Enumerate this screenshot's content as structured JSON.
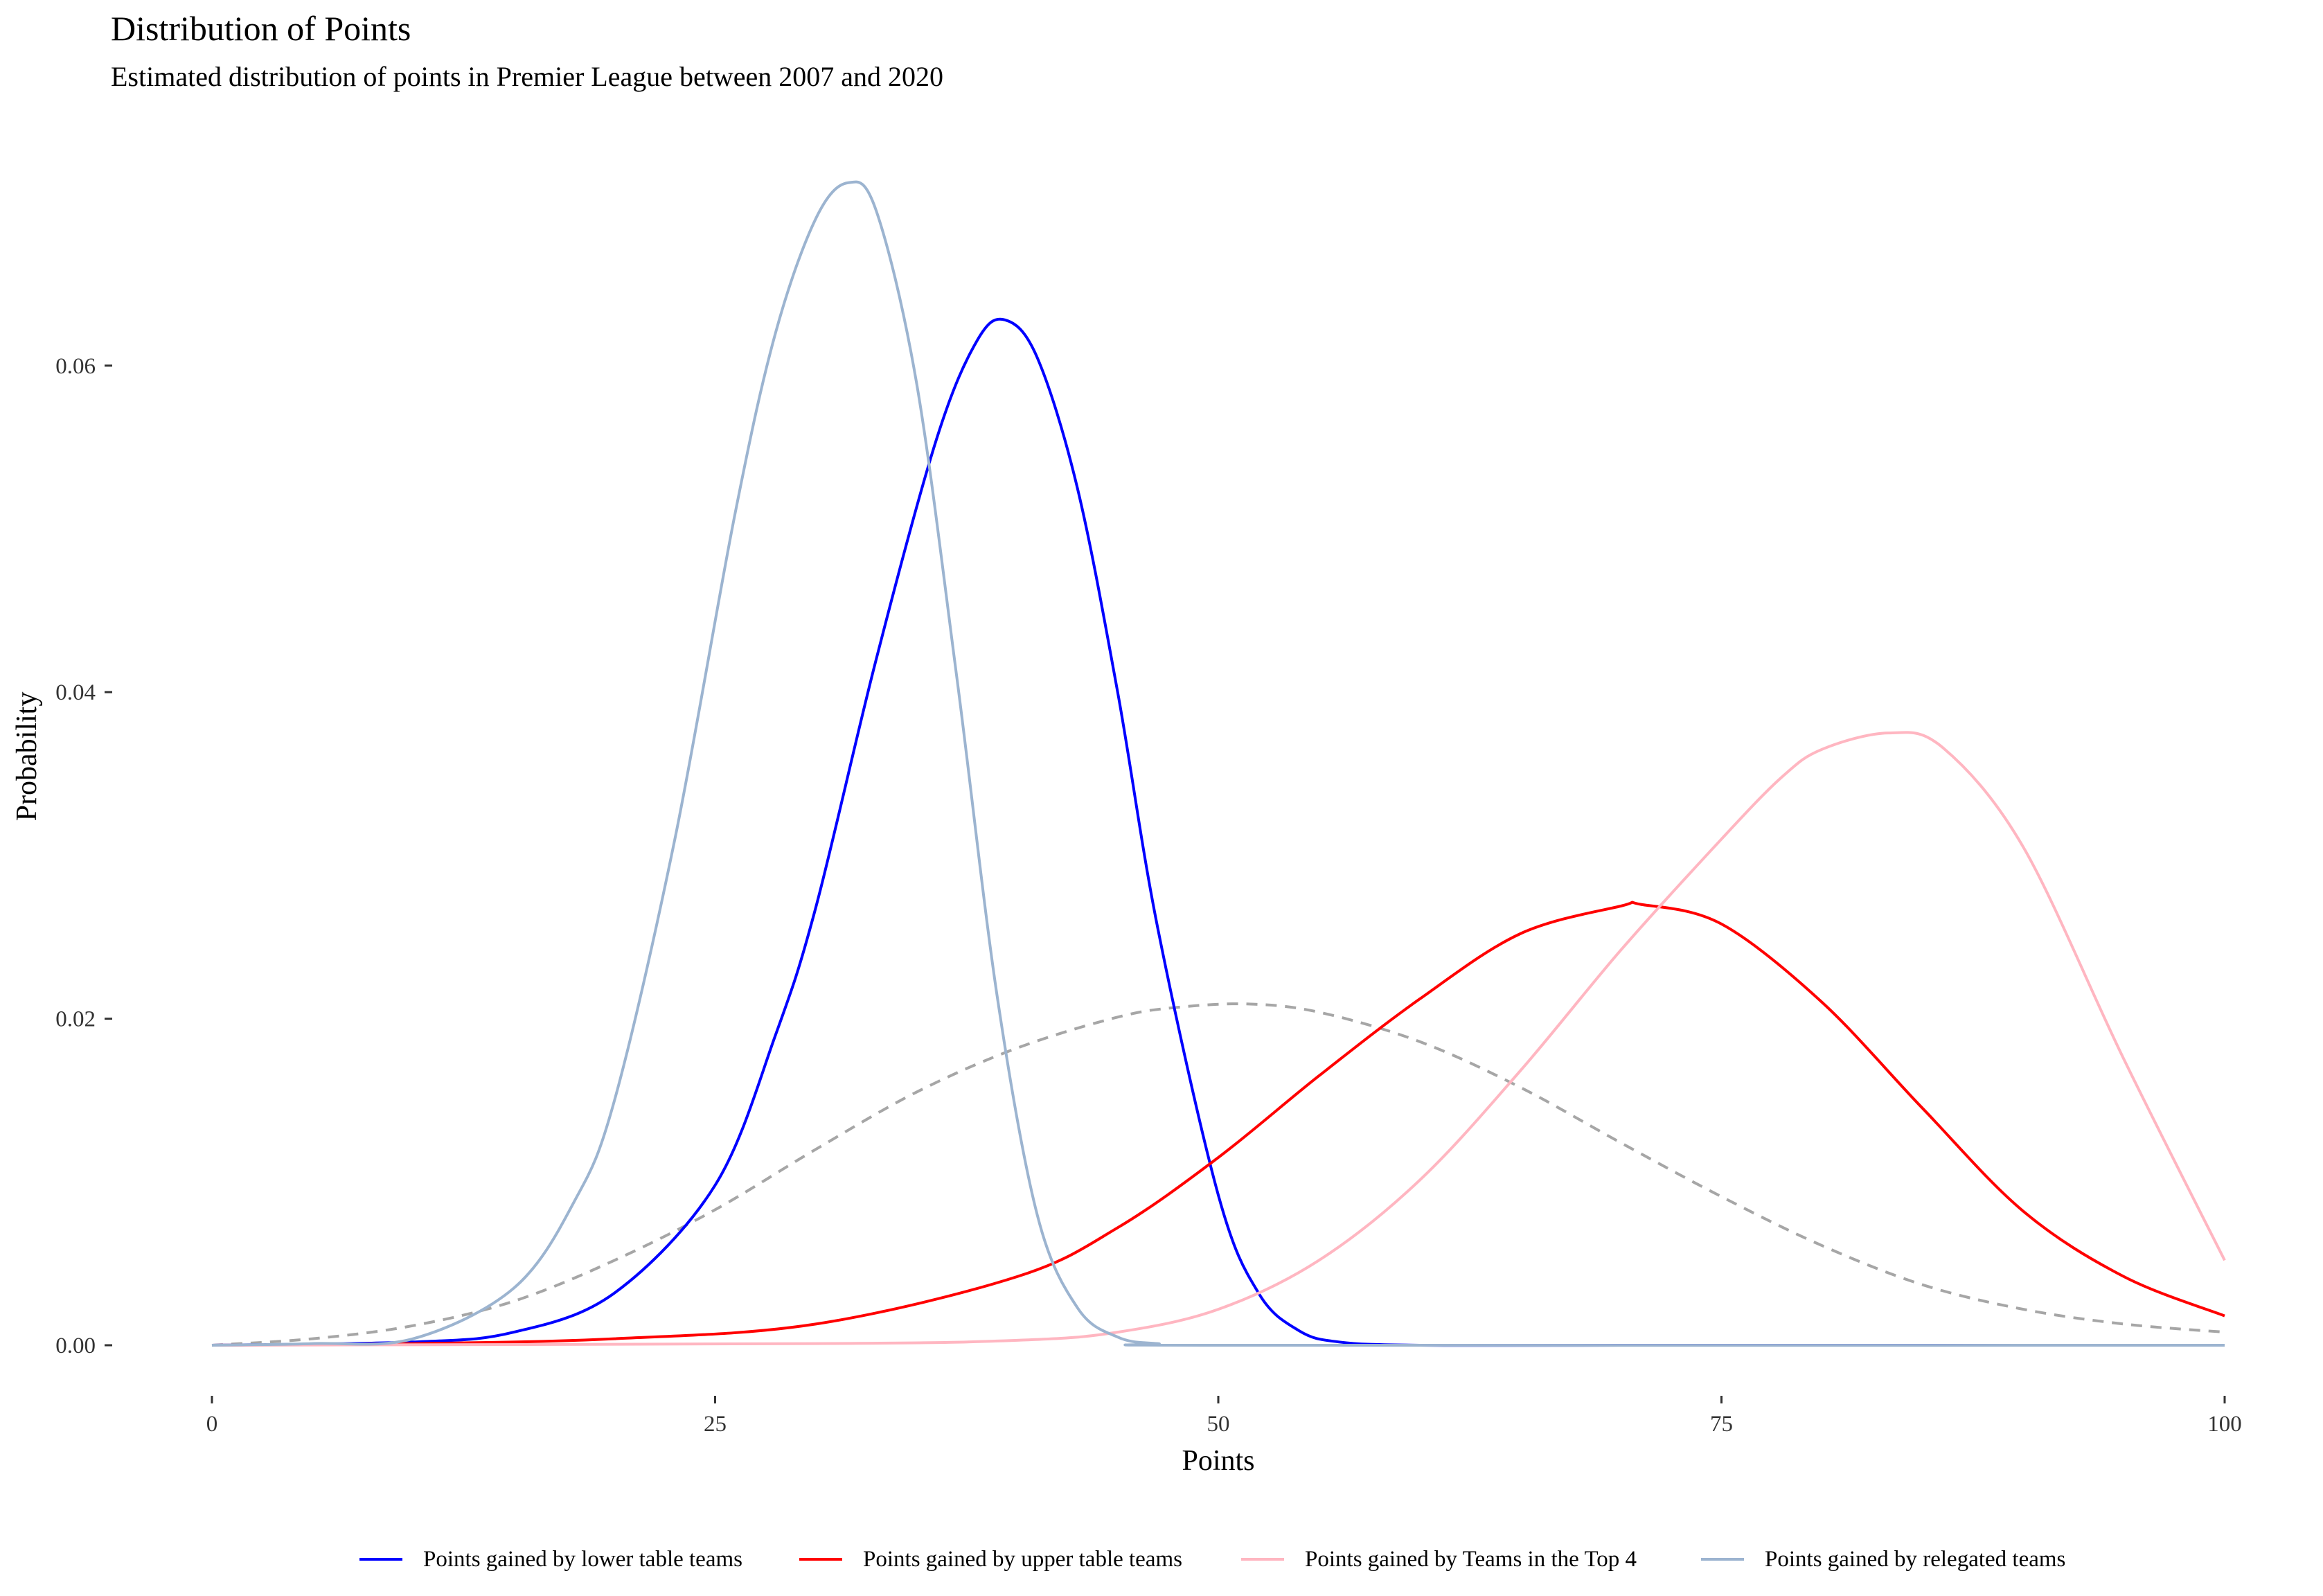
{
  "chart_data": {
    "type": "line",
    "title": "Distribution of Points",
    "subtitle": "Estimated distribution of points in Premier League between 2007 and 2020",
    "xlabel": "Points",
    "ylabel": "Probability",
    "xlim": [
      0,
      100
    ],
    "ylim": [
      0,
      0.072
    ],
    "x_ticks": [
      0,
      25,
      50,
      75,
      100
    ],
    "x_tick_labels": [
      "0",
      "25",
      "50",
      "75",
      "100"
    ],
    "y_ticks": [
      0,
      0.02,
      0.04,
      0.06
    ],
    "y_tick_labels": [
      "0.00",
      "0.02",
      "0.04",
      "0.06"
    ],
    "grid": false,
    "legend_position": "bottom",
    "series": [
      {
        "name": "Points gained by lower table teams",
        "color": "#0000ff",
        "style": "solid",
        "x": [
          0,
          10,
          15,
          20,
          25,
          28,
          30,
          33,
          36,
          38,
          39.4,
          41,
          43,
          45,
          47,
          50,
          52,
          54,
          56,
          60,
          70,
          100
        ],
        "y": [
          0,
          0.0002,
          0.0008,
          0.0032,
          0.0098,
          0.019,
          0.0268,
          0.042,
          0.0555,
          0.0615,
          0.0628,
          0.0605,
          0.0525,
          0.04,
          0.0255,
          0.0092,
          0.0032,
          0.0009,
          0.0002,
          0,
          0,
          0
        ]
      },
      {
        "name": "Points gained by upper table teams",
        "color": "#ff0000",
        "style": "solid",
        "x": [
          0,
          10,
          20,
          30,
          40,
          45,
          50,
          55,
          60,
          65,
          70,
          71,
          75,
          80,
          85,
          90,
          95,
          100
        ],
        "y": [
          0,
          0.0001,
          0.0004,
          0.0013,
          0.0042,
          0.0072,
          0.0115,
          0.0165,
          0.0212,
          0.0252,
          0.0269,
          0.027,
          0.0258,
          0.021,
          0.0145,
          0.0082,
          0.0042,
          0.0018
        ]
      },
      {
        "name": "Points gained by Teams in the Top 4",
        "color": "#ffb6c1",
        "style": "solid",
        "x": [
          0,
          30,
          40,
          45,
          50,
          55,
          60,
          65,
          70,
          75,
          78,
          80,
          83.3,
          86,
          90,
          95,
          100
        ],
        "y": [
          0,
          0.0001,
          0.0003,
          0.0008,
          0.0022,
          0.0052,
          0.0101,
          0.0168,
          0.0242,
          0.031,
          0.0348,
          0.0365,
          0.0375,
          0.0366,
          0.0305,
          0.0175,
          0.0052
        ]
      },
      {
        "name": "Points gained by relegated teams",
        "color": "#9cb4d0",
        "style": "solid",
        "x": [
          0,
          5,
          10,
          15,
          18,
          20,
          23,
          26,
          28,
          30,
          31.6,
          33,
          35,
          37,
          39,
          41,
          43,
          45,
          47,
          50,
          100
        ],
        "y": [
          0,
          0.0001,
          0.0004,
          0.0035,
          0.0088,
          0.015,
          0.031,
          0.051,
          0.062,
          0.069,
          0.0712,
          0.0695,
          0.059,
          0.041,
          0.0215,
          0.008,
          0.0023,
          0.0005,
          0.0001,
          0,
          0
        ]
      },
      {
        "name": "",
        "color": "#a6a6a6",
        "style": "dashed",
        "x": [
          0,
          5,
          10,
          15,
          20,
          25,
          30,
          35,
          40,
          45,
          48,
          51.5,
          55,
          60,
          65,
          70,
          75,
          80,
          85,
          90,
          95,
          100
        ],
        "y": [
          0,
          0.0004,
          0.0012,
          0.0027,
          0.0052,
          0.0083,
          0.012,
          0.0155,
          0.0182,
          0.0201,
          0.0207,
          0.0209,
          0.0204,
          0.0186,
          0.0158,
          0.0124,
          0.0091,
          0.0061,
          0.0037,
          0.0022,
          0.0013,
          0.0008
        ]
      }
    ]
  }
}
